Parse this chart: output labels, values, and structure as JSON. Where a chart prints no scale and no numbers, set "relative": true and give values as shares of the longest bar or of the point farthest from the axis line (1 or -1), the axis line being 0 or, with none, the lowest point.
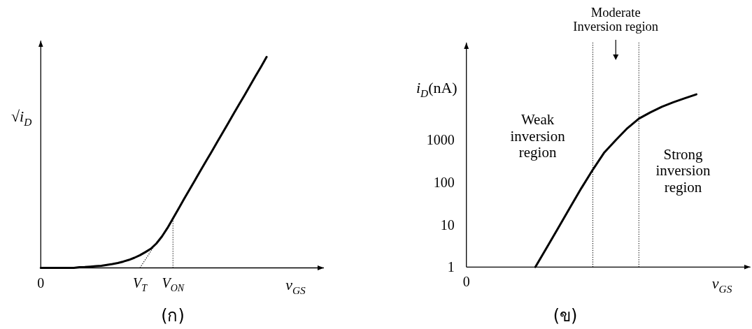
{
  "chart_data": [
    {
      "type": "line",
      "title": "(ก)",
      "xlabel": "*v*$_{GS}$",
      "ylabel": "√*i*$_{D}$",
      "relative": true,
      "line_style": "solid",
      "categories": [
        "0",
        null,
        null,
        null,
        null,
        null,
        null,
        null,
        null,
        null,
        null,
        null,
        null,
        null,
        null,
        null,
        null,
        null,
        "*V*$_{T}$",
        null,
        null,
        null,
        null,
        null,
        "*V*$_{ON}$",
        null,
        null,
        null,
        null,
        null,
        null,
        null,
        null,
        null,
        null,
        null,
        null,
        null,
        null,
        null,
        null,
        null
      ],
      "series": [
        {
          "color": "#000000",
          "values": [
            0,
            0,
            0,
            0,
            0,
            0,
            0,
            0.003,
            0.004,
            0.006,
            0.008,
            0.01,
            0.014,
            0.018,
            0.023,
            0.03,
            0.038,
            0.048,
            0.06,
            0.075,
            0.091,
            0.116,
            0.149,
            0.189,
            0.234,
            0.28,
            0.326,
            0.371,
            0.416,
            0.461,
            0.506,
            0.55,
            0.595,
            0.64,
            0.685,
            0.73,
            0.775,
            0.819,
            0.864,
            0.91,
            0.954,
            1
          ]
        },
        {
          "color": "#000000",
          "line_style": "dotted",
          "values": [
            null,
            null,
            null,
            null,
            null,
            null,
            null,
            null,
            null,
            null,
            null,
            null,
            null,
            null,
            null,
            null,
            null,
            null,
            0,
            0.04,
            0.08,
            0.12,
            null,
            null,
            null,
            null,
            null,
            null,
            null,
            null,
            null,
            null,
            null,
            null,
            null,
            null,
            null,
            null,
            null,
            null,
            null,
            null
          ]
        }
      ],
      "ref_lines": [
        {
          "axis": "x",
          "value": "*V*$_{ON}$",
          "color": "#000000",
          "line_style": "dotted"
        }
      ]
    },
    {
      "type": "line",
      "title": "(ข)",
      "xlabel": "*v*$_{GS}$",
      "ylabel": "*i*$_{D}$(nA)",
      "log": "y",
      "ylim": [
        1,
        200000
      ],
      "yticks": [
        1,
        10,
        100,
        1000
      ],
      "line_style": "solid",
      "categories": [
        "0",
        null,
        null,
        null,
        null,
        null,
        null,
        null,
        null,
        null,
        null,
        null,
        null,
        null,
        null,
        null,
        null,
        null,
        null,
        null,
        null
      ],
      "series": [
        {
          "color": "#000000",
          "values": [
            null,
            null,
            null,
            null,
            null,
            null,
            1,
            2.9,
            8.5,
            25,
            73,
            200,
            510,
            1000,
            1900,
            3200,
            4500,
            6100,
            7800,
            9700,
            12000
          ]
        }
      ],
      "annotations": [
        "Moderate Inversion region",
        "Weak inversion region",
        "Strong inversion region"
      ]
    }
  ]
}
